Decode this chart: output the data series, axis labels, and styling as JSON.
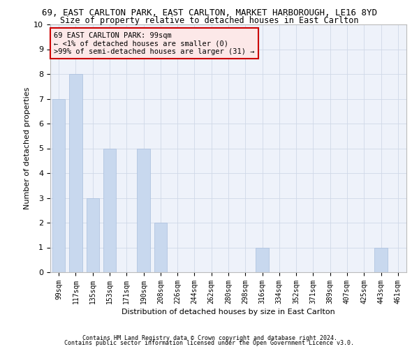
{
  "title": "69, EAST CARLTON PARK, EAST CARLTON, MARKET HARBOROUGH, LE16 8YD",
  "subtitle": "Size of property relative to detached houses in East Carlton",
  "xlabel": "Distribution of detached houses by size in East Carlton",
  "ylabel": "Number of detached properties",
  "categories": [
    "99sqm",
    "117sqm",
    "135sqm",
    "153sqm",
    "171sqm",
    "190sqm",
    "208sqm",
    "226sqm",
    "244sqm",
    "262sqm",
    "280sqm",
    "298sqm",
    "316sqm",
    "334sqm",
    "352sqm",
    "371sqm",
    "389sqm",
    "407sqm",
    "425sqm",
    "443sqm",
    "461sqm"
  ],
  "values": [
    7,
    8,
    3,
    5,
    0,
    5,
    2,
    0,
    0,
    0,
    0,
    0,
    1,
    0,
    0,
    0,
    0,
    0,
    0,
    1,
    0
  ],
  "bar_color": "#c8d8ee",
  "bar_edge_color": "#a8bedd",
  "annotation_line1": "69 EAST CARLTON PARK: 99sqm",
  "annotation_line2": "← <1% of detached houses are smaller (0)",
  "annotation_line3": ">99% of semi-detached houses are larger (31) →",
  "annotation_box_facecolor": "#fce8e8",
  "annotation_box_edgecolor": "#cc0000",
  "ylim": [
    0,
    10
  ],
  "yticks": [
    0,
    1,
    2,
    3,
    4,
    5,
    6,
    7,
    8,
    9,
    10
  ],
  "grid_color": "#d0d8e8",
  "background_color": "#eef2fa",
  "footnote1": "Contains HM Land Registry data © Crown copyright and database right 2024.",
  "footnote2": "Contains public sector information licensed under the Open Government Licence v3.0.",
  "title_fontsize": 9,
  "subtitle_fontsize": 8.5,
  "annotation_fontsize": 7.5,
  "ylabel_fontsize": 8,
  "xlabel_fontsize": 8,
  "tick_fontsize": 7,
  "footnote_fontsize": 6
}
